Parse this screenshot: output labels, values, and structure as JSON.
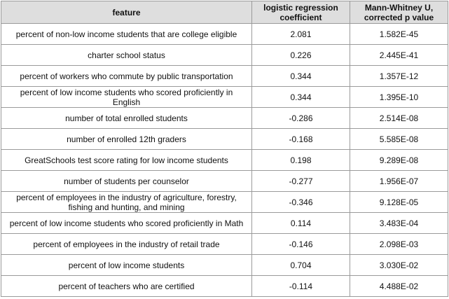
{
  "table": {
    "headers": {
      "feature": "feature",
      "coef": "logistic regression coefficient",
      "pval": "Mann-Whitney U, corrected p value"
    },
    "rows": [
      {
        "feature": "percent of non-low income students that are college eligible",
        "coef": "2.081",
        "pval": "1.582E-45"
      },
      {
        "feature": "charter school status",
        "coef": "0.226",
        "pval": "2.445E-41"
      },
      {
        "feature": "percent of workers who commute by public transportation",
        "coef": "0.344",
        "pval": "1.357E-12"
      },
      {
        "feature": "percent of low income students who scored proficiently in English",
        "coef": "0.344",
        "pval": "1.395E-10"
      },
      {
        "feature": "number of total enrolled students",
        "coef": "-0.286",
        "pval": "2.514E-08"
      },
      {
        "feature": "number of enrolled 12th graders",
        "coef": "-0.168",
        "pval": "5.585E-08"
      },
      {
        "feature": "GreatSchools test score rating for low income students",
        "coef": "0.198",
        "pval": "9.289E-08"
      },
      {
        "feature": "number of students per counselor",
        "coef": "-0.277",
        "pval": "1.956E-07"
      },
      {
        "feature": "percent of employees in the industry of agriculture, forestry, fishing and hunting, and mining",
        "coef": "-0.346",
        "pval": "9.128E-05"
      },
      {
        "feature": "percent of low income students who scored proficiently in Math",
        "coef": "0.114",
        "pval": "3.483E-04"
      },
      {
        "feature": "percent of employees in the industry of retail trade",
        "coef": "-0.146",
        "pval": "2.098E-03"
      },
      {
        "feature": "percent of low income students",
        "coef": "0.704",
        "pval": "3.030E-02"
      },
      {
        "feature": "percent of teachers who are certified",
        "coef": "-0.114",
        "pval": "4.488E-02"
      }
    ]
  }
}
